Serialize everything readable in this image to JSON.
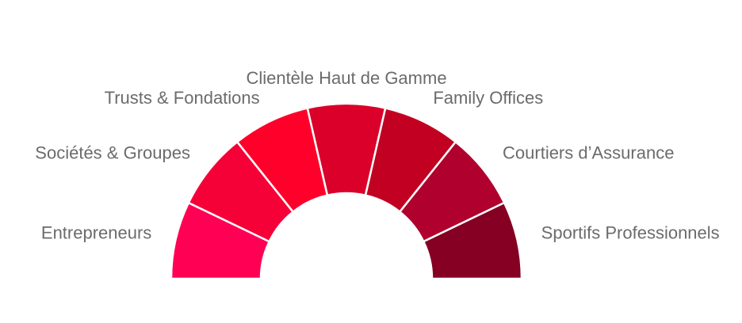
{
  "chart_data": {
    "type": "pie",
    "variant": "semi-donut",
    "categories": [
      "Entrepreneurs",
      "Sociétés & Groupes",
      "Trusts & Fondations",
      "Clientèle Haut de Gamme",
      "Family Offices",
      "Courtiers d’Assurance",
      "Sportifs Professionnels"
    ],
    "values": [
      1,
      1,
      1,
      1,
      1,
      1,
      1
    ],
    "colors": [
      "#ff0055",
      "#f60038",
      "#ff002a",
      "#da002a",
      "#c20022",
      "#b0002e",
      "#850023"
    ],
    "legend": "none"
  }
}
